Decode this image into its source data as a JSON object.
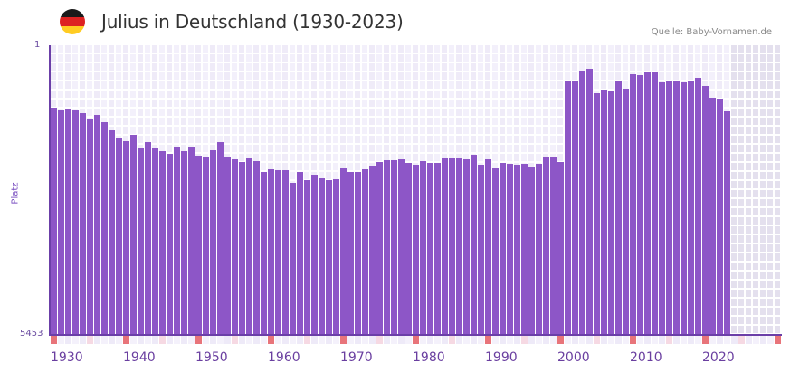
{
  "header": {
    "title": "Julius in Deutschland (1930-2023)",
    "source": "Quelle: Baby-Vornamen.de",
    "flag_colors": [
      "#1a1a1a",
      "#dd2222",
      "#ffcc22"
    ]
  },
  "colors": {
    "bar": "#8d56c7",
    "axis": "#6b3fa8",
    "grid_a": "#efebf8",
    "grid_b": "#f3f0fb",
    "future": "#e4e0ee",
    "decade_marker": "#e8747a",
    "half_decade_marker": "#f6d9e3"
  },
  "chart_data": {
    "type": "bar",
    "title": "Julius in Deutschland (1930-2023)",
    "xlabel": "",
    "ylabel": "Platz",
    "y_axis_inverted": true,
    "ylim": [
      1,
      5453
    ],
    "y_tick_labels": [
      "1",
      "5453"
    ],
    "x_tick_labels": [
      "1930",
      "1940",
      "1950",
      "1960",
      "1970",
      "1980",
      "1990",
      "2000",
      "2010",
      "2020"
    ],
    "x_range": [
      1930,
      2030
    ],
    "grid": true,
    "categories": [
      1930,
      1931,
      1932,
      1933,
      1934,
      1935,
      1936,
      1937,
      1938,
      1939,
      1940,
      1941,
      1942,
      1943,
      1944,
      1945,
      1946,
      1947,
      1948,
      1949,
      1950,
      1951,
      1952,
      1953,
      1954,
      1955,
      1956,
      1957,
      1958,
      1959,
      1960,
      1961,
      1962,
      1963,
      1964,
      1965,
      1966,
      1967,
      1968,
      1969,
      1970,
      1971,
      1972,
      1973,
      1974,
      1975,
      1976,
      1977,
      1978,
      1979,
      1980,
      1981,
      1982,
      1983,
      1984,
      1985,
      1986,
      1987,
      1988,
      1989,
      1990,
      1991,
      1992,
      1993,
      1994,
      1995,
      1996,
      1997,
      1998,
      1999,
      2000,
      2001,
      2002,
      2003,
      2004,
      2005,
      2006,
      2007,
      2008,
      2009,
      2010,
      2011,
      2012,
      2013,
      2014,
      2015,
      2016,
      2017,
      2018,
      2019,
      2020,
      2021,
      2022,
      2023
    ],
    "values": [
      1176,
      1227,
      1193,
      1227,
      1278,
      1380,
      1312,
      1448,
      1601,
      1737,
      1805,
      1686,
      1924,
      1822,
      1941,
      1992,
      2043,
      1907,
      1992,
      1907,
      2077,
      2094,
      1975,
      1822,
      2094,
      2145,
      2196,
      2128,
      2179,
      2383,
      2332,
      2349,
      2349,
      2587,
      2383,
      2536,
      2434,
      2502,
      2536,
      2519,
      2315,
      2383,
      2383,
      2332,
      2264,
      2196,
      2162,
      2162,
      2145,
      2213,
      2247,
      2179,
      2213,
      2213,
      2128,
      2111,
      2111,
      2145,
      2060,
      2247,
      2145,
      2315,
      2213,
      2230,
      2247,
      2230,
      2298,
      2230,
      2094,
      2094,
      2196,
      665,
      682,
      478,
      444,
      903,
      835,
      869,
      665,
      818,
      546,
      563,
      495,
      512,
      699,
      665,
      665,
      699,
      682,
      614,
      767,
      988,
      1005,
      1244
    ]
  }
}
